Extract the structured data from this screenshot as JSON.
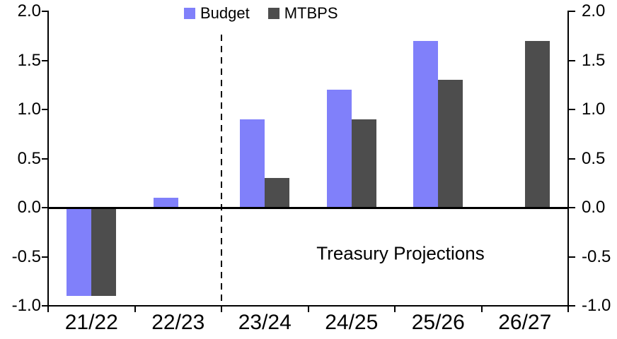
{
  "chart_data": {
    "type": "bar",
    "title": "",
    "categories": [
      "21/22",
      "22/23",
      "23/24",
      "24/25",
      "25/26",
      "26/27"
    ],
    "series": [
      {
        "name": "Budget",
        "color": "#8080FA",
        "values": [
          -0.9,
          0.1,
          0.9,
          1.2,
          1.7,
          null
        ]
      },
      {
        "name": "MTBPS",
        "color": "#4D4D4D",
        "values": [
          -0.9,
          null,
          0.3,
          0.9,
          1.3,
          1.7
        ]
      }
    ],
    "ylim": [
      -1.0,
      2.0
    ],
    "yticks": [
      2.0,
      1.5,
      1.0,
      0.5,
      0.0,
      -0.5,
      -1.0
    ],
    "ytick_labels": [
      "2.0",
      "1.5",
      "1.0",
      "0.5",
      "0.0",
      "-0.5",
      "-1.0"
    ],
    "mirrored_right_axis": true,
    "grid": false,
    "legend_position": "top-center",
    "annotation": "Treasury Projections",
    "separator": {
      "style": "dashed",
      "between": [
        "22/23",
        "23/24"
      ]
    },
    "axis_color": "#000000",
    "background": "#FFFFFF"
  }
}
